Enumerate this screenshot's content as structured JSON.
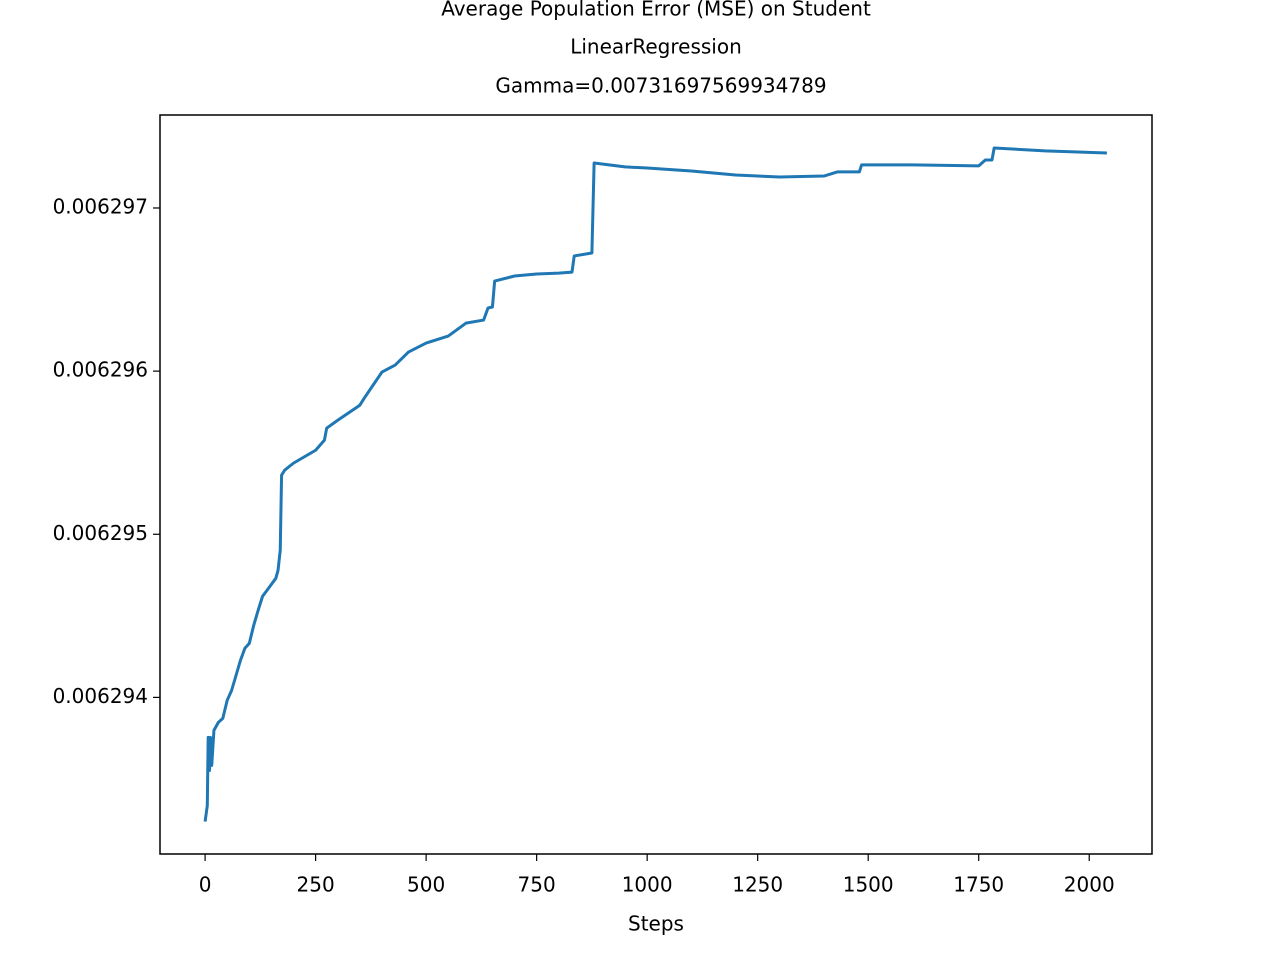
{
  "chart_data": {
    "type": "line",
    "title": [
      "Average Population Error (MSE) on Student",
      "LinearRegression",
      "Gamma=0.007316975699347​89"
    ],
    "xlabel": "Steps",
    "x": [
      0,
      5,
      7,
      10,
      12,
      15,
      20,
      30,
      40,
      50,
      60,
      70,
      80,
      90,
      100,
      110,
      120,
      130,
      140,
      160,
      165,
      170,
      173,
      180,
      200,
      250,
      270,
      275,
      300,
      350,
      360,
      380,
      400,
      430,
      460,
      500,
      550,
      590,
      630,
      640,
      650,
      655,
      700,
      750,
      800,
      830,
      835,
      875,
      880,
      950,
      1000,
      1100,
      1200,
      1300,
      1400,
      1430,
      1480,
      1485,
      1600,
      1750,
      1765,
      1780,
      1785,
      1900,
      2040
    ],
    "series": [
      {
        "name": "MSE",
        "color": "#1f77b4",
        "values": [
          0.006293239,
          0.006293337,
          0.006293755,
          0.006293552,
          0.006293755,
          0.006293583,
          0.006293798,
          0.006293847,
          0.006293871,
          0.006293982,
          0.006294043,
          0.006294135,
          0.006294227,
          0.006294301,
          0.006294331,
          0.006294442,
          0.006294534,
          0.00629462,
          0.006294656,
          0.00629473,
          0.006294779,
          0.006294902,
          0.006295362,
          0.006295393,
          0.006295436,
          0.006295515,
          0.006295577,
          0.00629565,
          0.006295699,
          0.006295791,
          0.006295834,
          0.006295914,
          0.006295994,
          0.006296037,
          0.006296117,
          0.006296172,
          0.006296215,
          0.006296294,
          0.006296313,
          0.006296387,
          0.006296393,
          0.006296552,
          0.006296583,
          0.006296595,
          0.006296601,
          0.006296607,
          0.006296706,
          0.006296724,
          0.006297276,
          0.006297252,
          0.006297245,
          0.006297227,
          0.006297202,
          0.00629719,
          0.006297196,
          0.006297221,
          0.006297221,
          0.006297264,
          0.006297264,
          0.006297258,
          0.006297294,
          0.006297294,
          0.006297368,
          0.00629735,
          0.006297337
        ]
      }
    ],
    "xlim": [
      -102,
      2142
    ],
    "xticks": [
      0,
      250,
      500,
      750,
      1000,
      1250,
      1500,
      1750,
      2000
    ],
    "ylim": [
      0.00629304,
      0.00629757
    ],
    "yticks": [
      0.006294,
      0.006295,
      0.006296,
      0.006297
    ]
  }
}
